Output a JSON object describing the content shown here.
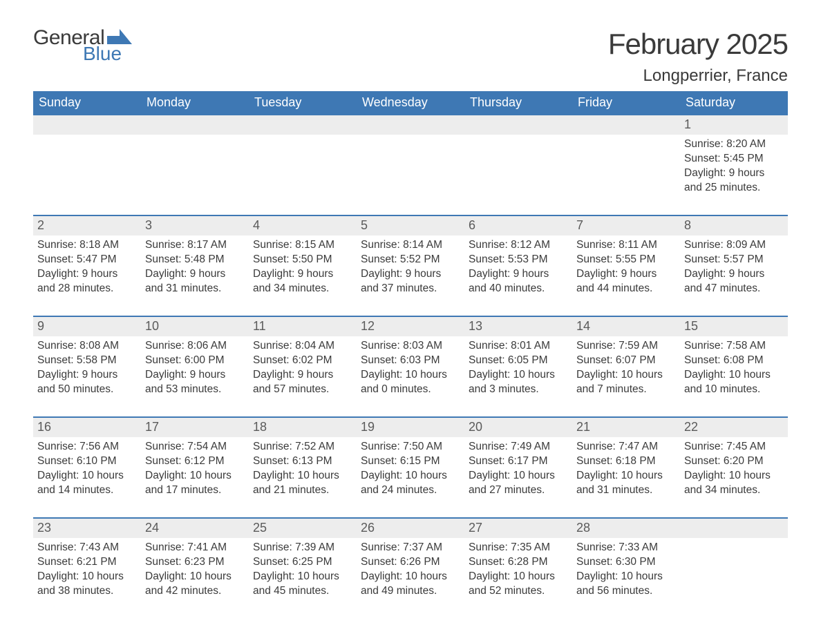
{
  "logo": {
    "text_general": "General",
    "text_blue": "Blue",
    "flag_color": "#3e78b4"
  },
  "header": {
    "month_title": "February 2025",
    "location": "Longperrier, France"
  },
  "colors": {
    "header_bg": "#3e78b4",
    "header_text": "#ffffff",
    "band_bg": "#ededed",
    "band_border": "#3e78b4",
    "body_text": "#3a3a3a",
    "daynum_text": "#5a5a5a",
    "page_bg": "#ffffff"
  },
  "typography": {
    "month_title_fontsize": 42,
    "location_fontsize": 24,
    "dow_fontsize": 18,
    "daynum_fontsize": 18,
    "body_fontsize": 15.5
  },
  "day_labels": [
    "Sunday",
    "Monday",
    "Tuesday",
    "Wednesday",
    "Thursday",
    "Friday",
    "Saturday"
  ],
  "labels": {
    "sunrise": "Sunrise: ",
    "sunset": "Sunset: ",
    "daylight": "Daylight: "
  },
  "weeks": [
    [
      null,
      null,
      null,
      null,
      null,
      null,
      {
        "n": "1",
        "sunrise": "8:20 AM",
        "sunset": "5:45 PM",
        "daylight": "9 hours and 25 minutes."
      }
    ],
    [
      {
        "n": "2",
        "sunrise": "8:18 AM",
        "sunset": "5:47 PM",
        "daylight": "9 hours and 28 minutes."
      },
      {
        "n": "3",
        "sunrise": "8:17 AM",
        "sunset": "5:48 PM",
        "daylight": "9 hours and 31 minutes."
      },
      {
        "n": "4",
        "sunrise": "8:15 AM",
        "sunset": "5:50 PM",
        "daylight": "9 hours and 34 minutes."
      },
      {
        "n": "5",
        "sunrise": "8:14 AM",
        "sunset": "5:52 PM",
        "daylight": "9 hours and 37 minutes."
      },
      {
        "n": "6",
        "sunrise": "8:12 AM",
        "sunset": "5:53 PM",
        "daylight": "9 hours and 40 minutes."
      },
      {
        "n": "7",
        "sunrise": "8:11 AM",
        "sunset": "5:55 PM",
        "daylight": "9 hours and 44 minutes."
      },
      {
        "n": "8",
        "sunrise": "8:09 AM",
        "sunset": "5:57 PM",
        "daylight": "9 hours and 47 minutes."
      }
    ],
    [
      {
        "n": "9",
        "sunrise": "8:08 AM",
        "sunset": "5:58 PM",
        "daylight": "9 hours and 50 minutes."
      },
      {
        "n": "10",
        "sunrise": "8:06 AM",
        "sunset": "6:00 PM",
        "daylight": "9 hours and 53 minutes."
      },
      {
        "n": "11",
        "sunrise": "8:04 AM",
        "sunset": "6:02 PM",
        "daylight": "9 hours and 57 minutes."
      },
      {
        "n": "12",
        "sunrise": "8:03 AM",
        "sunset": "6:03 PM",
        "daylight": "10 hours and 0 minutes."
      },
      {
        "n": "13",
        "sunrise": "8:01 AM",
        "sunset": "6:05 PM",
        "daylight": "10 hours and 3 minutes."
      },
      {
        "n": "14",
        "sunrise": "7:59 AM",
        "sunset": "6:07 PM",
        "daylight": "10 hours and 7 minutes."
      },
      {
        "n": "15",
        "sunrise": "7:58 AM",
        "sunset": "6:08 PM",
        "daylight": "10 hours and 10 minutes."
      }
    ],
    [
      {
        "n": "16",
        "sunrise": "7:56 AM",
        "sunset": "6:10 PM",
        "daylight": "10 hours and 14 minutes."
      },
      {
        "n": "17",
        "sunrise": "7:54 AM",
        "sunset": "6:12 PM",
        "daylight": "10 hours and 17 minutes."
      },
      {
        "n": "18",
        "sunrise": "7:52 AM",
        "sunset": "6:13 PM",
        "daylight": "10 hours and 21 minutes."
      },
      {
        "n": "19",
        "sunrise": "7:50 AM",
        "sunset": "6:15 PM",
        "daylight": "10 hours and 24 minutes."
      },
      {
        "n": "20",
        "sunrise": "7:49 AM",
        "sunset": "6:17 PM",
        "daylight": "10 hours and 27 minutes."
      },
      {
        "n": "21",
        "sunrise": "7:47 AM",
        "sunset": "6:18 PM",
        "daylight": "10 hours and 31 minutes."
      },
      {
        "n": "22",
        "sunrise": "7:45 AM",
        "sunset": "6:20 PM",
        "daylight": "10 hours and 34 minutes."
      }
    ],
    [
      {
        "n": "23",
        "sunrise": "7:43 AM",
        "sunset": "6:21 PM",
        "daylight": "10 hours and 38 minutes."
      },
      {
        "n": "24",
        "sunrise": "7:41 AM",
        "sunset": "6:23 PM",
        "daylight": "10 hours and 42 minutes."
      },
      {
        "n": "25",
        "sunrise": "7:39 AM",
        "sunset": "6:25 PM",
        "daylight": "10 hours and 45 minutes."
      },
      {
        "n": "26",
        "sunrise": "7:37 AM",
        "sunset": "6:26 PM",
        "daylight": "10 hours and 49 minutes."
      },
      {
        "n": "27",
        "sunrise": "7:35 AM",
        "sunset": "6:28 PM",
        "daylight": "10 hours and 52 minutes."
      },
      {
        "n": "28",
        "sunrise": "7:33 AM",
        "sunset": "6:30 PM",
        "daylight": "10 hours and 56 minutes."
      },
      null
    ]
  ]
}
